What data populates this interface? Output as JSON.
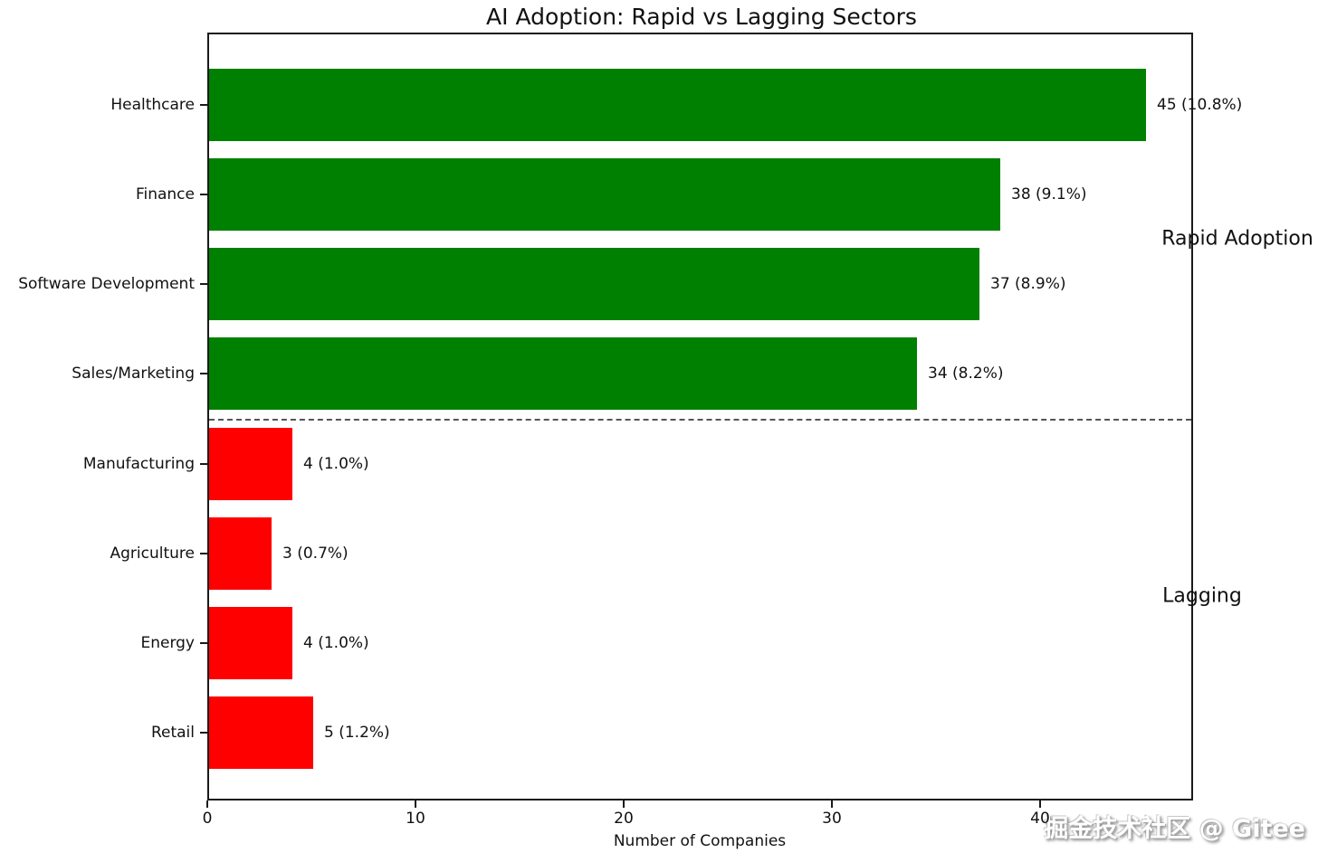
{
  "chart_data": {
    "type": "bar",
    "orientation": "horizontal",
    "title": "AI Adoption: Rapid vs Lagging Sectors",
    "xlabel": "Number of Companies",
    "categories": [
      "Healthcare",
      "Finance",
      "Software Development",
      "Sales/Marketing",
      "Manufacturing",
      "Agriculture",
      "Energy",
      "Retail"
    ],
    "values": [
      45,
      38,
      37,
      34,
      4,
      3,
      4,
      5
    ],
    "bar_labels": [
      "45 (10.8%)",
      "38 (9.1%)",
      "37 (8.9%)",
      "34 (8.2%)",
      "4 (1.0%)",
      "3 (0.7%)",
      "4 (1.0%)",
      "5 (1.2%)"
    ],
    "groups": [
      "rapid",
      "rapid",
      "rapid",
      "rapid",
      "lagging",
      "lagging",
      "lagging",
      "lagging"
    ],
    "group_colors": {
      "rapid": "#008000",
      "lagging": "#ff0000"
    },
    "xlim": [
      0,
      47.35
    ],
    "xticks": [
      0,
      10,
      20,
      30,
      40
    ],
    "xtick_labels": [
      "0",
      "10",
      "20",
      "30",
      "40"
    ],
    "grid": false,
    "legend": "none",
    "separator": {
      "after_category": "Sales/Marketing",
      "style": "dashed",
      "color": "#555555"
    },
    "annotations": [
      {
        "text": "Rapid Adoption"
      },
      {
        "text": "Lagging"
      }
    ]
  },
  "watermark": {
    "text": "掘金技术社区 @ Gitee"
  }
}
